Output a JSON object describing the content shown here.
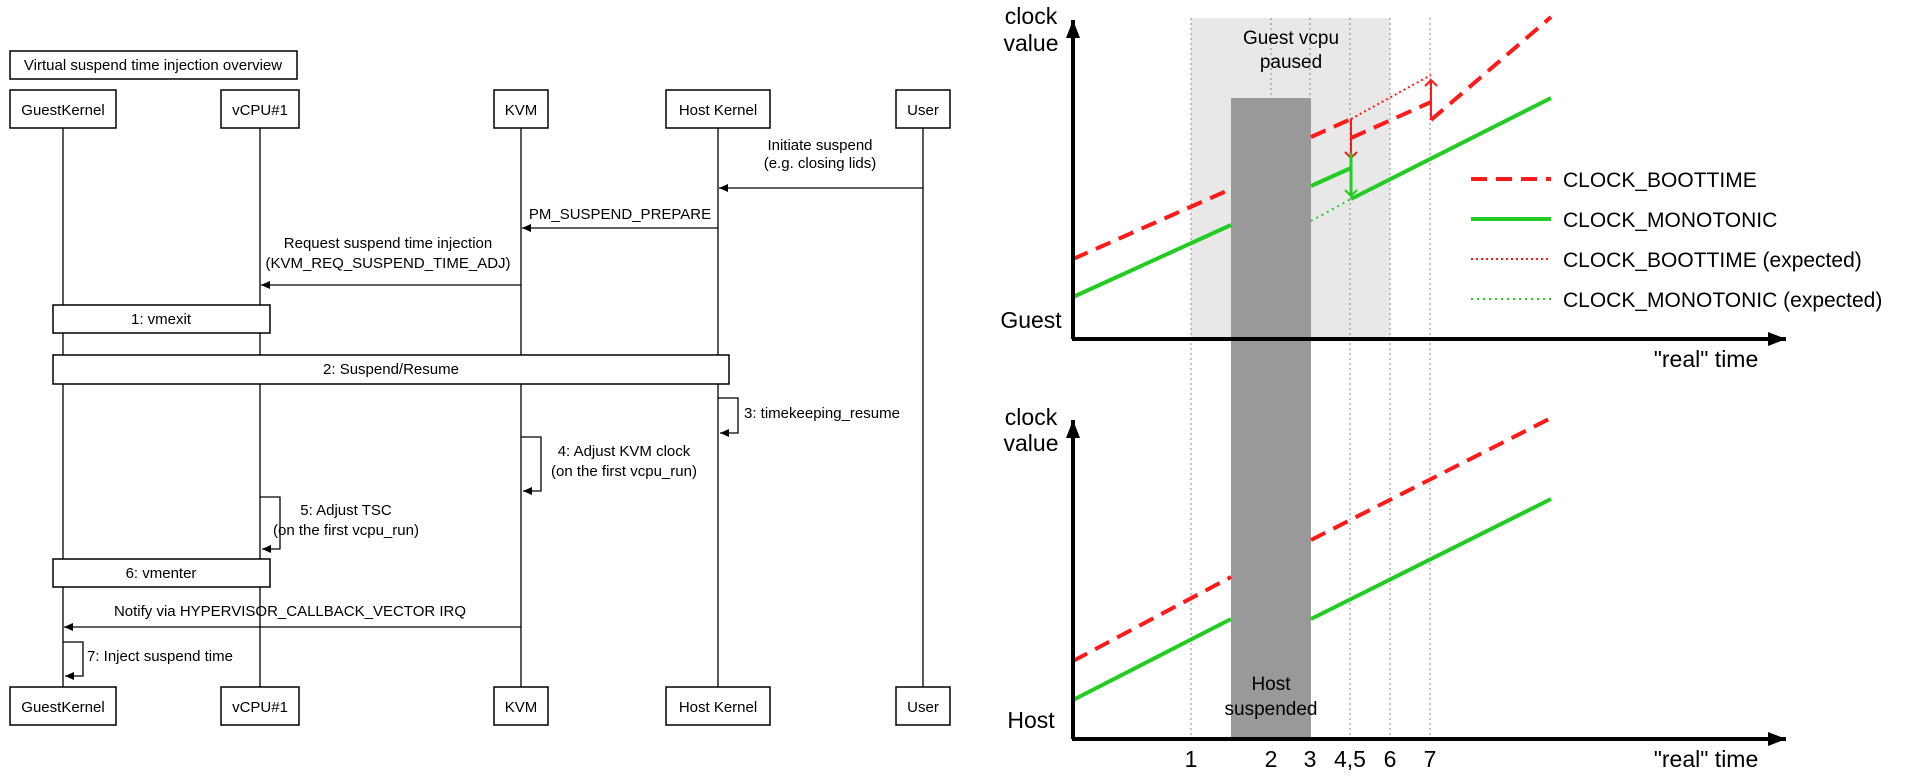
{
  "sequence": {
    "title": "Virtual suspend time injection overview",
    "participants": [
      "GuestKernel",
      "vCPU#1",
      "KVM",
      "Host Kernel",
      "User"
    ],
    "messages": {
      "initiate_suspend_1": "Initiate suspend",
      "initiate_suspend_2": "(e.g. closing lids)",
      "pm_suspend_prepare": "PM_SUSPEND_PREPARE",
      "request_injection_1": "Request suspend time injection",
      "request_injection_2": "(KVM_REQ_SUSPEND_TIME_ADJ)",
      "vmexit": "1: vmexit",
      "suspend_resume": "2: Suspend/Resume",
      "timekeeping_resume": "3: timekeeping_resume",
      "adjust_kvm_clock_1": "4: Adjust KVM clock",
      "adjust_kvm_clock_2": "(on the first vcpu_run)",
      "adjust_tsc_1": "5: Adjust TSC",
      "adjust_tsc_2": "(on the first vcpu_run)",
      "vmenter": "6: vmenter",
      "notify": "Notify via HYPERVISOR_CALLBACK_VECTOR IRQ",
      "inject_suspend_time": "7: Inject suspend time"
    }
  },
  "plots": {
    "y_label_1": "clock",
    "y_label_2": "value",
    "x_label": "\"real\" time",
    "guest_label": "Guest",
    "host_label": "Host",
    "guest_paused_1": "Guest vcpu",
    "guest_paused_2": "paused",
    "host_suspended_1": "Host",
    "host_suspended_2": "suspended",
    "time_ticks": [
      "1",
      "2",
      "3",
      "4,5",
      "6",
      "7"
    ],
    "legend": [
      {
        "label": "CLOCK_BOOTTIME",
        "color": "#ff1a1a",
        "style": "dashed"
      },
      {
        "label": "CLOCK_MONOTONIC",
        "color": "#22cc22",
        "style": "solid"
      },
      {
        "label": "CLOCK_BOOTTIME (expected)",
        "color": "#ff1a1a",
        "style": "dotted"
      },
      {
        "label": "CLOCK_MONOTONIC (expected)",
        "color": "#22cc22",
        "style": "dotted"
      }
    ]
  },
  "colors": {
    "boottime": "#ff1a1a",
    "monotonic": "#22cc22",
    "paused_region": "#e8e8e8",
    "suspended_region": "#999999"
  }
}
